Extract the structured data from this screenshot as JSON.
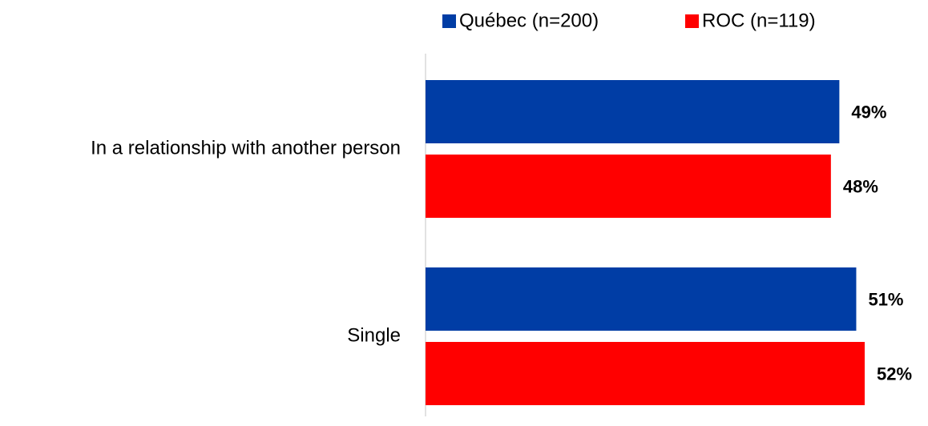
{
  "chart_data": {
    "type": "bar",
    "orientation": "horizontal",
    "categories": [
      "In a relationship with another person",
      "Single"
    ],
    "series": [
      {
        "name": "Québec (n=200)",
        "color": "#003da5",
        "values": [
          49,
          51
        ],
        "value_labels": [
          "49%",
          "51%"
        ]
      },
      {
        "name": "ROC (n=119)",
        "color": "#ff0000",
        "values": [
          48,
          52
        ],
        "value_labels": [
          "48%",
          "52%"
        ]
      }
    ]
  }
}
